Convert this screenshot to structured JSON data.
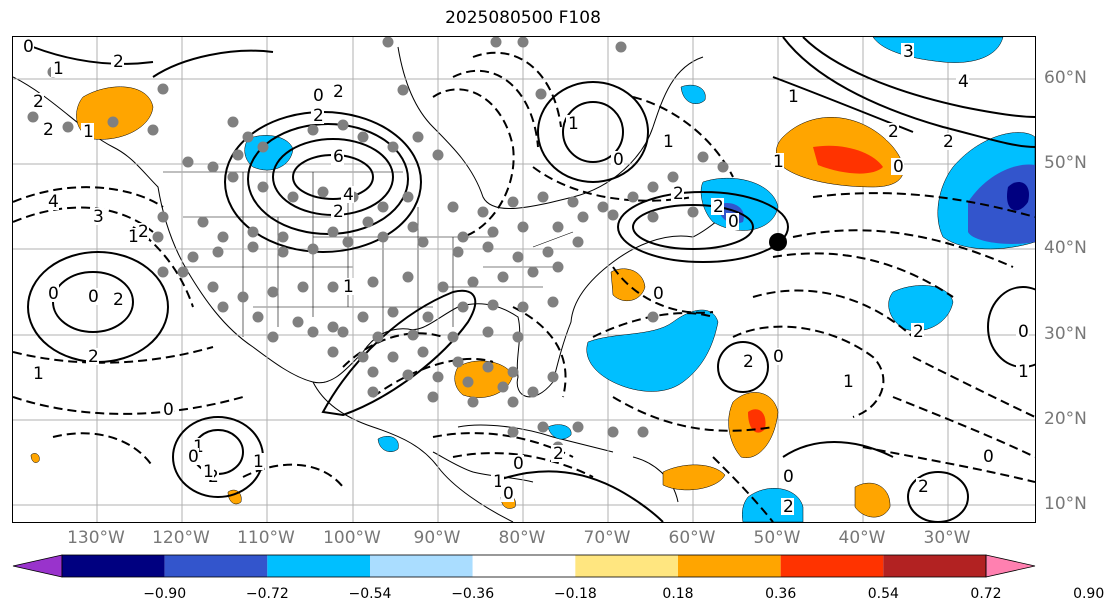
{
  "title": "2025080500 F108",
  "lat_labels": [
    "60°N",
    "50°N",
    "40°N",
    "30°N",
    "20°N",
    "10°N"
  ],
  "lon_labels": [
    "130°W",
    "120°W",
    "110°W",
    "100°W",
    "90°W",
    "80°W",
    "70°W",
    "60°W",
    "50°W",
    "40°W",
    "30°W"
  ],
  "colorbar": {
    "ticks": [
      "−0.90",
      "−0.72",
      "−0.54",
      "−0.36",
      "−0.18",
      "0.18",
      "0.36",
      "0.54",
      "0.72",
      "0.90"
    ],
    "colors": [
      "#9933cc",
      "#000080",
      "#3355cc",
      "#00bfff",
      "#aaddff",
      "#ffffff",
      "#ffe680",
      "#ffa500",
      "#ff3300",
      "#b22222",
      "#ff80b0"
    ]
  },
  "contour_labels": [
    "0",
    "1",
    "2",
    "2",
    "2",
    "0",
    "2",
    "1",
    "6",
    "4",
    "2",
    "2",
    "1",
    "0",
    "1",
    "2",
    "2",
    "0",
    "4",
    "3",
    "2",
    "1",
    "0",
    "0",
    "2",
    "1",
    "0",
    "2",
    "1",
    "0",
    "1",
    "0",
    "2",
    "1",
    "1",
    "2",
    "0",
    "1",
    "2",
    "0",
    "1",
    "0",
    "2",
    "0",
    "2",
    "1",
    "0",
    "0",
    "2",
    "1",
    "3",
    "4",
    "2",
    "2",
    "0",
    "1"
  ]
}
